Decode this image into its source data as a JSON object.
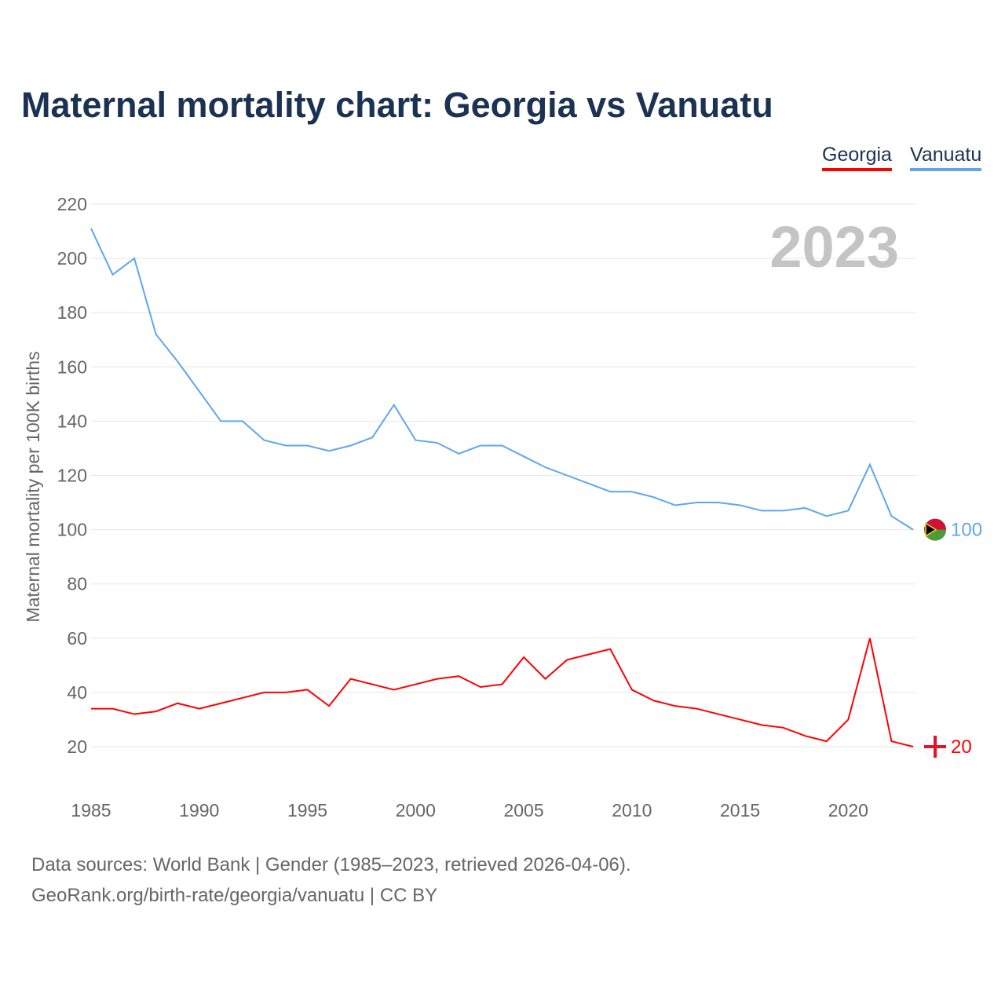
{
  "chart_data": {
    "type": "line",
    "title": "Maternal mortality chart: Georgia vs Vanuatu",
    "ylabel": "Maternal mortality per 100K births",
    "xlabel": "",
    "ylim": [
      20,
      220
    ],
    "yticks": [
      20,
      40,
      60,
      80,
      100,
      120,
      140,
      160,
      180,
      200,
      220
    ],
    "xticks": [
      1985,
      1990,
      1995,
      2000,
      2005,
      2010,
      2015,
      2020
    ],
    "grid": true,
    "legend_placement": "top-right",
    "year_label": "2023",
    "x": [
      1985,
      1986,
      1987,
      1988,
      1989,
      1990,
      1991,
      1992,
      1993,
      1994,
      1995,
      1996,
      1997,
      1998,
      1999,
      2000,
      2001,
      2002,
      2003,
      2004,
      2005,
      2006,
      2007,
      2008,
      2009,
      2010,
      2011,
      2012,
      2013,
      2014,
      2015,
      2016,
      2017,
      2018,
      2019,
      2020,
      2021,
      2022,
      2023
    ],
    "series": [
      {
        "name": "Georgia",
        "color": "#ff0000",
        "end_label": "20",
        "values": [
          34,
          34,
          32,
          33,
          36,
          34,
          36,
          38,
          40,
          40,
          41,
          35,
          45,
          43,
          41,
          43,
          45,
          46,
          42,
          43,
          53,
          45,
          52,
          54,
          56,
          41,
          37,
          35,
          34,
          32,
          30,
          28,
          27,
          24,
          22,
          30,
          60,
          22,
          20
        ]
      },
      {
        "name": "Vanuatu",
        "color": "#5ea6ee",
        "end_label": "100",
        "values": [
          211,
          194,
          200,
          172,
          162,
          151,
          140,
          140,
          133,
          131,
          131,
          129,
          131,
          134,
          146,
          133,
          132,
          128,
          131,
          131,
          127,
          123,
          120,
          117,
          114,
          114,
          112,
          109,
          110,
          110,
          109,
          107,
          107,
          108,
          105,
          107,
          124,
          105,
          100
        ]
      }
    ]
  },
  "footer": {
    "line1": "Data sources: World Bank | Gender (1985–2023, retrieved 2026-04-06).",
    "line2": "GeoRank.org/birth-rate/georgia/vanuatu | CC BY"
  }
}
